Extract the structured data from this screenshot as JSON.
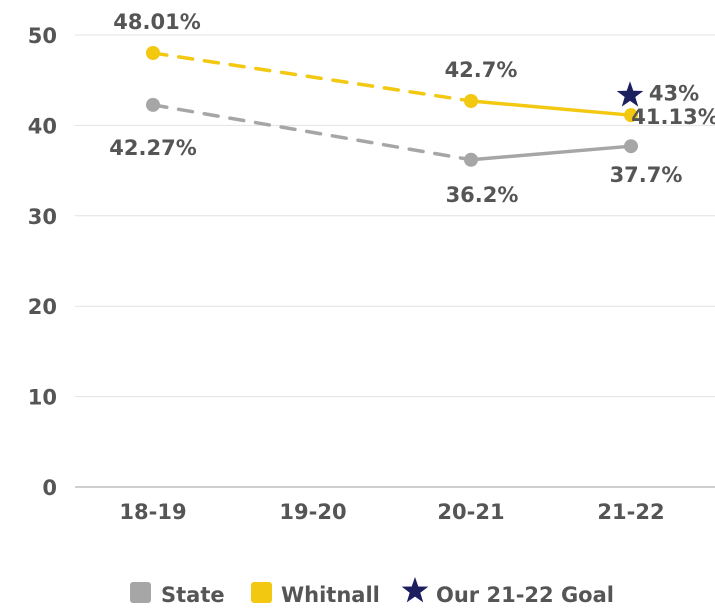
{
  "chart_data": {
    "type": "line",
    "categories": [
      "18-19",
      "19-20",
      "20-21",
      "21-22"
    ],
    "ylim": [
      0,
      50
    ],
    "yticks": [
      0,
      10,
      20,
      30,
      40,
      50
    ],
    "grid": true,
    "legend_position": "bottom",
    "series": [
      {
        "name": "State",
        "color": "#a6a6a6",
        "values": [
          42.27,
          null,
          36.2,
          37.7
        ],
        "labels": [
          "42.27%",
          "",
          "36.2%",
          "37.7%"
        ]
      },
      {
        "name": "Whitnall",
        "color": "#f2c811",
        "values": [
          48.01,
          null,
          42.7,
          41.13
        ],
        "labels": [
          "48.01%",
          "",
          "42.7%",
          "41.13%"
        ]
      }
    ],
    "goal": {
      "name": "Our 21-22 Goal",
      "color": "#1b1f5e",
      "category": "21-22",
      "value": 43,
      "label": "43%"
    }
  }
}
